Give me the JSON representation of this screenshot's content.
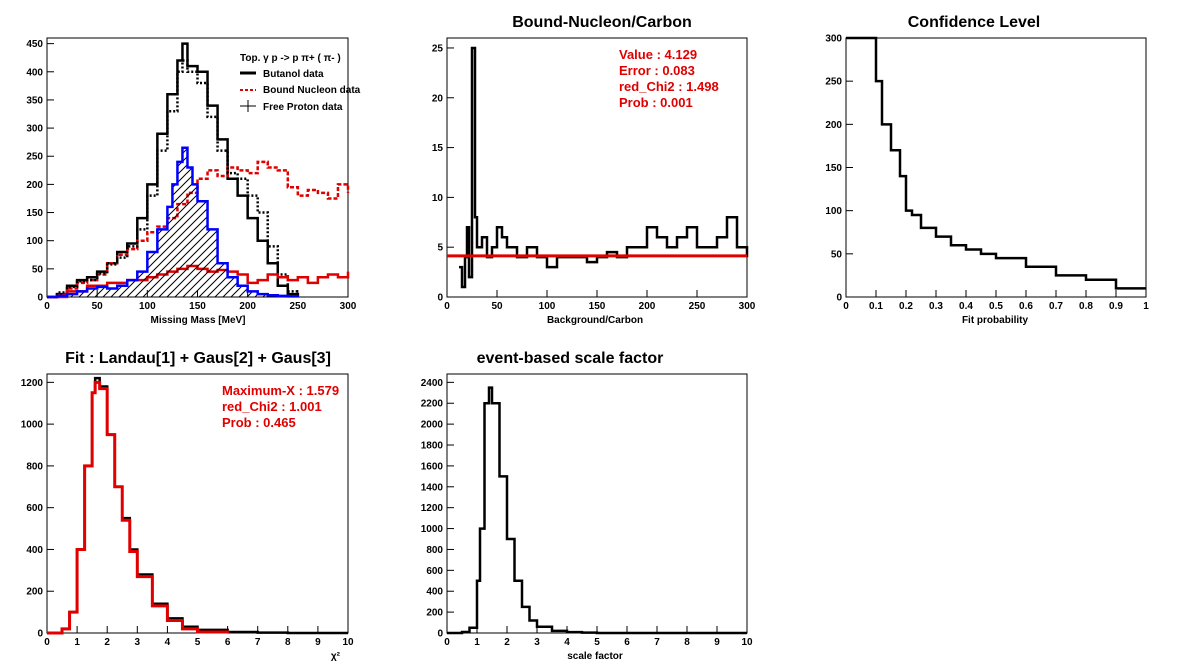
{
  "chart_data": [
    {
      "id": "p1",
      "type": "line",
      "title": "",
      "xlabel": "Missing Mass [MeV]",
      "xlim": [
        0,
        300
      ],
      "ylim": [
        0,
        460
      ],
      "xticks": [
        0,
        50,
        100,
        150,
        200,
        250,
        300
      ],
      "yticks": [
        0,
        50,
        100,
        150,
        200,
        250,
        300,
        350,
        400,
        450
      ],
      "legend": {
        "placement": "top-right",
        "header": "Top. γ p -> p  π+ ( π- )",
        "entries": [
          "Butanol data",
          "Bound Nucleon data",
          "Free Proton data"
        ]
      },
      "series": [
        {
          "name": "Butanol data",
          "color": "#000000",
          "x": [
            0,
            10,
            20,
            30,
            40,
            50,
            60,
            70,
            80,
            90,
            100,
            110,
            120,
            130,
            135,
            140,
            150,
            160,
            170,
            180,
            190,
            200,
            210,
            220,
            230,
            240,
            250
          ],
          "y": [
            0,
            5,
            20,
            30,
            35,
            45,
            60,
            80,
            95,
            140,
            200,
            290,
            360,
            420,
            450,
            410,
            400,
            340,
            280,
            210,
            180,
            140,
            100,
            60,
            20,
            5,
            0
          ]
        },
        {
          "name": "Bound Nucleon data",
          "color": "#e00000",
          "x": [
            0,
            10,
            20,
            30,
            40,
            50,
            60,
            70,
            80,
            90,
            100,
            110,
            120,
            130,
            140,
            150,
            160,
            170,
            180,
            190,
            200,
            210,
            220,
            230,
            240,
            250,
            260,
            270,
            280,
            290,
            300
          ],
          "y": [
            0,
            5,
            15,
            25,
            30,
            40,
            60,
            75,
            85,
            100,
            115,
            125,
            140,
            165,
            185,
            210,
            225,
            215,
            230,
            225,
            220,
            240,
            230,
            225,
            195,
            180,
            190,
            185,
            175,
            200,
            185
          ]
        },
        {
          "name": "Free Proton data",
          "color": "#000000",
          "x": [
            0,
            10,
            20,
            30,
            40,
            50,
            60,
            70,
            80,
            90,
            100,
            110,
            120,
            130,
            135,
            140,
            150,
            160,
            170,
            180,
            190,
            200,
            210,
            220,
            230,
            240,
            250
          ],
          "y": [
            0,
            8,
            18,
            28,
            30,
            42,
            58,
            70,
            90,
            120,
            180,
            260,
            330,
            400,
            420,
            400,
            380,
            320,
            260,
            220,
            210,
            180,
            150,
            90,
            40,
            10,
            0
          ]
        },
        {
          "name": "",
          "color": "#e00000",
          "x": [
            0,
            20,
            40,
            60,
            80,
            100,
            110,
            120,
            130,
            140,
            150,
            160,
            170,
            180,
            190,
            200,
            210,
            220,
            230,
            240,
            250,
            260,
            270,
            280,
            290,
            300
          ],
          "y": [
            0,
            10,
            20,
            25,
            30,
            35,
            40,
            45,
            50,
            55,
            50,
            45,
            48,
            45,
            40,
            25,
            30,
            40,
            35,
            30,
            35,
            25,
            35,
            40,
            35,
            45
          ]
        },
        {
          "name": "",
          "color": "#0000ff",
          "fill": "hatch",
          "x": [
            0,
            10,
            20,
            30,
            40,
            50,
            60,
            70,
            80,
            90,
            100,
            110,
            120,
            125,
            130,
            135,
            140,
            145,
            150,
            160,
            170,
            180,
            190,
            200,
            210,
            220,
            230,
            240,
            250
          ],
          "y": [
            0,
            2,
            5,
            10,
            15,
            18,
            15,
            20,
            30,
            45,
            80,
            120,
            160,
            200,
            240,
            265,
            230,
            200,
            170,
            120,
            60,
            35,
            20,
            10,
            5,
            3,
            2,
            1,
            0
          ]
        }
      ]
    },
    {
      "id": "p2",
      "type": "line",
      "title": "Bound-Nucleon/Carbon",
      "xlabel": "Background/Carbon",
      "xlim": [
        0,
        300
      ],
      "ylim": [
        0,
        26
      ],
      "xticks": [
        0,
        50,
        100,
        150,
        200,
        250,
        300
      ],
      "yticks": [
        0,
        5,
        10,
        15,
        20,
        25
      ],
      "stats": [
        "Value : 4.129",
        "Error : 0.083",
        "red_Chi2 : 1.498",
        "Prob : 0.001"
      ],
      "fit_value": 4.129,
      "series": [
        {
          "name": "",
          "color": "#000000",
          "x": [
            12,
            15,
            18,
            20,
            22,
            25,
            28,
            30,
            35,
            40,
            45,
            50,
            55,
            60,
            70,
            80,
            90,
            100,
            110,
            120,
            130,
            140,
            150,
            160,
            170,
            180,
            190,
            200,
            210,
            220,
            230,
            240,
            250,
            260,
            270,
            280,
            290,
            300
          ],
          "y": [
            3,
            1,
            4,
            7,
            2,
            25,
            8,
            5,
            6,
            4,
            5,
            7,
            6,
            5,
            4,
            5,
            4,
            3,
            4,
            4,
            4,
            3.5,
            4,
            4.5,
            4,
            5,
            5,
            7,
            6,
            5,
            6,
            7,
            5,
            5,
            6,
            8,
            5,
            4
          ]
        }
      ]
    },
    {
      "id": "p3",
      "type": "line",
      "title": "Confidence Level",
      "xlabel": "Fit probability",
      "xlim": [
        0,
        1
      ],
      "ylim": [
        0,
        300
      ],
      "xticks": [
        0,
        0.1,
        0.2,
        0.3,
        0.4,
        0.5,
        0.6,
        0.7,
        0.8,
        0.9,
        1
      ],
      "yticks": [
        0,
        50,
        100,
        150,
        200,
        250,
        300
      ],
      "series": [
        {
          "name": "",
          "color": "#000000",
          "x": [
            0,
            0.05,
            0.08,
            0.1,
            0.12,
            0.15,
            0.18,
            0.2,
            0.22,
            0.25,
            0.3,
            0.35,
            0.4,
            0.45,
            0.5,
            0.6,
            0.7,
            0.8,
            0.9,
            1
          ],
          "y": [
            300,
            300,
            300,
            250,
            200,
            170,
            140,
            100,
            95,
            80,
            70,
            60,
            55,
            50,
            45,
            35,
            25,
            20,
            10,
            10
          ]
        }
      ]
    },
    {
      "id": "p4",
      "type": "line",
      "title": "Fit : Landau[1] + Gaus[2] + Gaus[3]",
      "xlabel": "χ²",
      "xlim": [
        0,
        10
      ],
      "ylim": [
        0,
        1240
      ],
      "xticks": [
        0,
        1,
        2,
        3,
        4,
        5,
        6,
        7,
        8,
        9,
        10
      ],
      "yticks": [
        0,
        200,
        400,
        600,
        800,
        1000,
        1200
      ],
      "stats": [
        "Maximum-X : 1.579",
        "red_Chi2 : 1.001",
        "Prob : 0.465"
      ],
      "series": [
        {
          "name": "",
          "color": "#000000",
          "x": [
            0,
            0.5,
            0.75,
            1,
            1.25,
            1.5,
            1.6,
            1.75,
            2,
            2.25,
            2.5,
            2.75,
            3,
            3.5,
            4,
            4.5,
            5,
            6,
            7,
            8,
            9,
            10
          ],
          "y": [
            0,
            20,
            100,
            400,
            800,
            1150,
            1220,
            1180,
            950,
            700,
            550,
            400,
            280,
            140,
            70,
            30,
            15,
            5,
            2,
            0,
            0,
            0
          ]
        },
        {
          "name": "",
          "color": "#e00000",
          "x": [
            0,
            0.5,
            0.75,
            1,
            1.25,
            1.5,
            1.6,
            1.75,
            2,
            2.25,
            2.5,
            2.75,
            3,
            3.5,
            4,
            4.5,
            5,
            6
          ],
          "y": [
            0,
            20,
            100,
            400,
            800,
            1150,
            1200,
            1170,
            950,
            700,
            540,
            390,
            270,
            130,
            60,
            20,
            5,
            0
          ]
        }
      ]
    },
    {
      "id": "p5",
      "type": "line",
      "title": "event-based scale factor",
      "xlabel": "scale factor",
      "xlim": [
        0,
        10
      ],
      "ylim": [
        0,
        2480
      ],
      "xticks": [
        0,
        1,
        2,
        3,
        4,
        5,
        6,
        7,
        8,
        9,
        10
      ],
      "yticks": [
        0,
        200,
        400,
        600,
        800,
        1000,
        1200,
        1400,
        1600,
        1800,
        2000,
        2200,
        2400
      ],
      "series": [
        {
          "name": "",
          "color": "#000000",
          "x": [
            0,
            0.5,
            0.75,
            1,
            1.1,
            1.25,
            1.4,
            1.5,
            1.75,
            2,
            2.25,
            2.5,
            2.75,
            3,
            3.5,
            4,
            4.5,
            5,
            6,
            7,
            8,
            9,
            10
          ],
          "y": [
            0,
            10,
            50,
            500,
            1000,
            2200,
            2350,
            2200,
            1500,
            900,
            500,
            250,
            120,
            60,
            20,
            8,
            3,
            0,
            0,
            0,
            0,
            0,
            0
          ]
        }
      ]
    }
  ]
}
